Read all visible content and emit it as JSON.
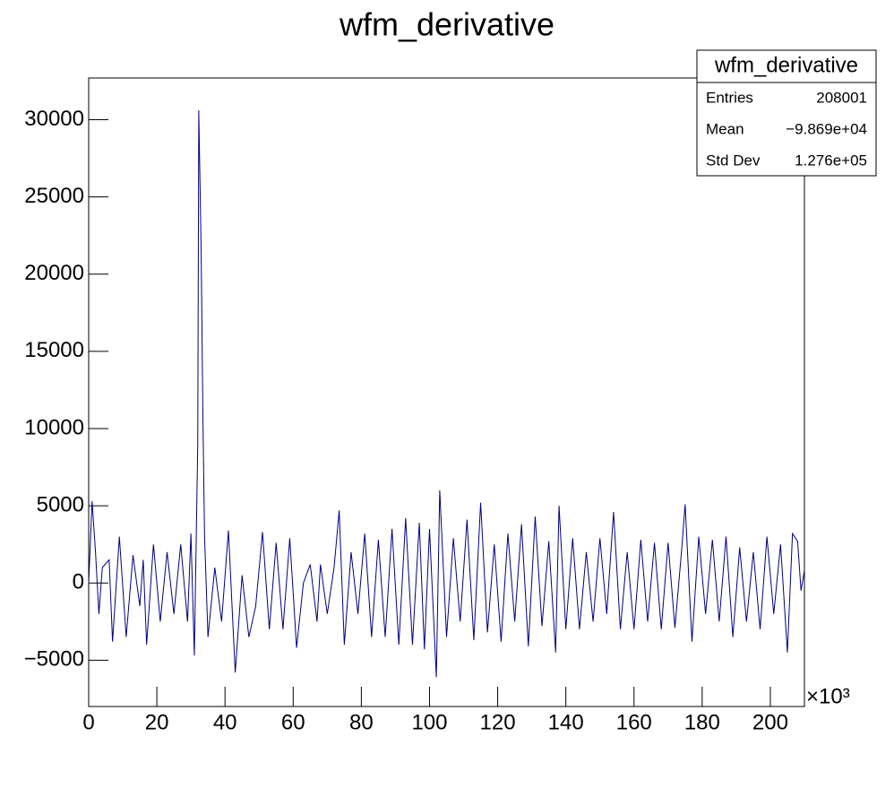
{
  "chart_data": {
    "type": "line",
    "title": "wfm_derivative",
    "x": [
      0,
      1,
      2,
      3,
      4,
      6,
      7,
      9,
      11,
      13,
      15,
      16,
      17,
      19,
      21,
      23,
      25,
      27,
      29,
      30,
      31,
      32,
      32.3,
      33,
      33.5,
      34,
      35,
      37,
      39,
      41,
      43,
      45,
      47,
      49,
      51,
      53,
      55,
      57,
      59,
      61,
      63,
      65,
      67,
      68,
      70,
      72,
      73.5,
      75,
      77,
      79,
      81,
      83,
      85,
      87,
      89,
      91,
      93,
      95,
      97,
      98.5,
      100,
      102,
      103,
      105,
      107,
      109,
      111,
      113,
      115,
      117,
      119,
      121,
      123,
      125,
      127,
      129,
      131,
      133,
      135,
      137,
      138,
      140,
      142,
      144,
      146,
      148,
      150,
      152,
      154,
      156,
      158,
      160,
      162,
      164,
      166,
      168,
      170,
      172,
      174,
      175,
      177,
      179,
      181,
      183,
      185,
      187,
      189,
      191,
      193,
      195,
      197,
      199,
      201,
      203,
      205,
      206.5,
      208,
      209,
      210
    ],
    "values": [
      0,
      5300,
      2000,
      -2000,
      1000,
      1500,
      -3800,
      3000,
      -3500,
      1800,
      -1500,
      1500,
      -4000,
      2500,
      -2500,
      2000,
      -2000,
      2500,
      -2500,
      3200,
      -4700,
      9000,
      30600,
      21500,
      11000,
      3000,
      -3500,
      1000,
      -2500,
      3400,
      -5800,
      500,
      -3500,
      -1500,
      3300,
      -3000,
      2600,
      -3000,
      2900,
      -4200,
      0,
      1200,
      -2500,
      1200,
      -2000,
      1000,
      4700,
      -4000,
      2000,
      -2000,
      3200,
      -3500,
      2800,
      -3500,
      3500,
      -4000,
      4200,
      -4000,
      3900,
      -4300,
      3500,
      -6100,
      6000,
      -3500,
      2900,
      -2500,
      4100,
      -3700,
      5200,
      -3200,
      2500,
      -3800,
      3200,
      -2500,
      3800,
      -4100,
      4300,
      -2800,
      2700,
      -4500,
      5000,
      -3000,
      2900,
      -3000,
      2000,
      -2500,
      2900,
      -2000,
      4600,
      -3000,
      2000,
      -3000,
      2800,
      -2500,
      2600,
      -3000,
      2600,
      -2900,
      2200,
      5100,
      -3800,
      3000,
      -2000,
      2800,
      -2500,
      3000,
      -3500,
      2300,
      -2500,
      2000,
      -3000,
      3000,
      -2000,
      2500,
      -4500,
      3200,
      2700,
      -500,
      800
    ],
    "color": "#00007f",
    "xlim": [
      0,
      210
    ],
    "xticks": [
      0,
      20,
      40,
      60,
      80,
      100,
      120,
      140,
      160,
      180,
      200
    ],
    "x_multiplier": "×10³",
    "ylim": [
      -8000,
      32700
    ],
    "yticks": [
      {
        "value": -5000,
        "label": "−5000"
      },
      0,
      5000,
      10000,
      15000,
      20000,
      25000,
      30000
    ],
    "stats": {
      "title": "wfm_derivative",
      "rows": [
        {
          "label": "Entries",
          "value": "208001"
        },
        {
          "label": "Mean",
          "value": "−9.869e+04"
        },
        {
          "label": "Std Dev",
          "value": "1.276e+05"
        }
      ]
    }
  }
}
